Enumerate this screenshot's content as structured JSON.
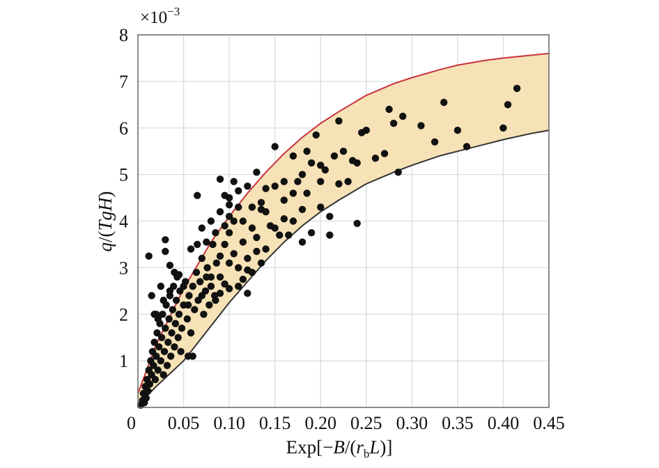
{
  "chart_data": {
    "type": "scatter",
    "title": "",
    "xlabel": {
      "prefix": "Exp[−",
      "b": "B",
      "mid": "/(",
      "r": "r",
      "sub": "b",
      "l": "L",
      "suffix": ")]"
    },
    "ylabel": {
      "q": "q",
      "mid": "/(",
      "tgh": "TgH",
      "suffix": ")"
    },
    "multiplier": {
      "base": "×10",
      "exp": "−3"
    },
    "xlim": [
      0,
      0.45
    ],
    "ylim": [
      0,
      8
    ],
    "x_ticks": [
      "0",
      "0.05",
      "0.10",
      "0.15",
      "0.20",
      "0.25",
      "0.30",
      "0.35",
      "0.40",
      "0.45"
    ],
    "y_ticks": [
      "1",
      "2",
      "3",
      "4",
      "5",
      "6",
      "7",
      "8"
    ],
    "grid": true,
    "band": {
      "fill_color": "#f6e2b6",
      "upper": {
        "color": "#c8323c",
        "x": [
          0,
          0.02,
          0.05,
          0.08,
          0.1,
          0.12,
          0.14,
          0.16,
          0.18,
          0.2,
          0.22,
          0.25,
          0.28,
          0.3,
          0.33,
          0.35,
          0.38,
          0.4,
          0.43,
          0.45
        ],
        "y": [
          0.3,
          1.35,
          2.55,
          3.55,
          4.1,
          4.6,
          5.05,
          5.45,
          5.8,
          6.1,
          6.35,
          6.7,
          6.95,
          7.08,
          7.25,
          7.35,
          7.45,
          7.5,
          7.56,
          7.6
        ]
      },
      "lower": {
        "color": "#333333",
        "x": [
          0,
          0.02,
          0.05,
          0.08,
          0.1,
          0.12,
          0.14,
          0.16,
          0.18,
          0.2,
          0.22,
          0.25,
          0.28,
          0.3,
          0.33,
          0.35,
          0.38,
          0.4,
          0.43,
          0.45
        ],
        "y": [
          0.05,
          0.45,
          1.0,
          1.75,
          2.25,
          2.7,
          3.15,
          3.55,
          3.9,
          4.2,
          4.45,
          4.8,
          5.05,
          5.2,
          5.4,
          5.5,
          5.65,
          5.75,
          5.88,
          5.95
        ]
      }
    },
    "series": [
      {
        "color": "#111111",
        "points": [
          [
            0.003,
            0.05
          ],
          [
            0.005,
            0.15
          ],
          [
            0.006,
            0.3
          ],
          [
            0.007,
            0.1
          ],
          [
            0.008,
            0.45
          ],
          [
            0.009,
            0.2
          ],
          [
            0.01,
            0.6
          ],
          [
            0.011,
            0.35
          ],
          [
            0.012,
            0.8
          ],
          [
            0.013,
            0.5
          ],
          [
            0.014,
            1.0
          ],
          [
            0.015,
            0.7
          ],
          [
            0.016,
            1.2
          ],
          [
            0.017,
            0.9
          ],
          [
            0.018,
            1.4
          ],
          [
            0.019,
            0.6
          ],
          [
            0.02,
            1.1
          ],
          [
            0.021,
            1.6
          ],
          [
            0.022,
            0.8
          ],
          [
            0.023,
            1.3
          ],
          [
            0.024,
            1.8
          ],
          [
            0.025,
            1.0
          ],
          [
            0.026,
            1.5
          ],
          [
            0.027,
            2.0
          ],
          [
            0.028,
            0.7
          ],
          [
            0.029,
            1.2
          ],
          [
            0.03,
            1.7
          ],
          [
            0.031,
            2.2
          ],
          [
            0.032,
            0.9
          ],
          [
            0.033,
            1.4
          ],
          [
            0.034,
            1.9
          ],
          [
            0.035,
            2.4
          ],
          [
            0.036,
            1.1
          ],
          [
            0.037,
            1.6
          ],
          [
            0.038,
            2.1
          ],
          [
            0.039,
            2.6
          ],
          [
            0.04,
            1.3
          ],
          [
            0.041,
            1.8
          ],
          [
            0.042,
            2.3
          ],
          [
            0.043,
            2.8
          ],
          [
            0.044,
            1.5
          ],
          [
            0.045,
            2.0
          ],
          [
            0.046,
            2.5
          ],
          [
            0.047,
            1.2
          ],
          [
            0.048,
            1.7
          ],
          [
            0.05,
            2.2
          ],
          [
            0.052,
            2.7
          ],
          [
            0.054,
            1.9
          ],
          [
            0.056,
            2.4
          ],
          [
            0.058,
            1.6
          ],
          [
            0.06,
            2.6
          ],
          [
            0.062,
            2.1
          ],
          [
            0.064,
            2.9
          ],
          [
            0.066,
            2.3
          ],
          [
            0.068,
            2.7
          ],
          [
            0.07,
            3.2
          ],
          [
            0.072,
            2.0
          ],
          [
            0.074,
            2.5
          ],
          [
            0.076,
            3.0
          ],
          [
            0.078,
            2.2
          ],
          [
            0.08,
            2.8
          ],
          [
            0.082,
            3.5
          ],
          [
            0.084,
            2.4
          ],
          [
            0.086,
            3.1
          ],
          [
            0.015,
            2.4
          ],
          [
            0.012,
            3.25
          ],
          [
            0.02,
            2.0
          ],
          [
            0.025,
            2.6
          ],
          [
            0.03,
            3.35
          ],
          [
            0.035,
            3.05
          ],
          [
            0.04,
            2.9
          ],
          [
            0.045,
            2.85
          ],
          [
            0.03,
            3.6
          ],
          [
            0.035,
            2.5
          ],
          [
            0.018,
            2.0
          ],
          [
            0.022,
            1.9
          ],
          [
            0.028,
            2.3
          ],
          [
            0.05,
            2.6
          ],
          [
            0.055,
            2.2
          ],
          [
            0.06,
            1.1
          ],
          [
            0.055,
            1.1
          ],
          [
            0.058,
            3.4
          ],
          [
            0.065,
            3.5
          ],
          [
            0.07,
            3.85
          ],
          [
            0.065,
            4.55
          ],
          [
            0.075,
            3.55
          ],
          [
            0.08,
            4.0
          ],
          [
            0.085,
            3.75
          ],
          [
            0.09,
            4.2
          ],
          [
            0.09,
            4.9
          ],
          [
            0.095,
            3.9
          ],
          [
            0.1,
            4.1
          ],
          [
            0.1,
            4.5
          ],
          [
            0.105,
            4.0
          ],
          [
            0.11,
            4.3
          ],
          [
            0.11,
            4.65
          ],
          [
            0.115,
            4.0
          ],
          [
            0.12,
            4.75
          ],
          [
            0.125,
            4.3
          ],
          [
            0.13,
            5.05
          ],
          [
            0.135,
            4.25
          ],
          [
            0.14,
            4.2
          ],
          [
            0.09,
            3.25
          ],
          [
            0.095,
            3.5
          ],
          [
            0.1,
            3.75
          ],
          [
            0.1,
            3.1
          ],
          [
            0.105,
            3.3
          ],
          [
            0.11,
            3.0
          ],
          [
            0.115,
            2.75
          ],
          [
            0.12,
            3.2
          ],
          [
            0.125,
            2.9
          ],
          [
            0.13,
            3.35
          ],
          [
            0.135,
            3.1
          ],
          [
            0.1,
            2.55
          ],
          [
            0.095,
            2.65
          ],
          [
            0.09,
            2.45
          ],
          [
            0.085,
            2.3
          ],
          [
            0.08,
            2.6
          ],
          [
            0.075,
            2.8
          ],
          [
            0.07,
            2.4
          ],
          [
            0.09,
            2.8
          ],
          [
            0.11,
            2.6
          ],
          [
            0.12,
            2.45
          ],
          [
            0.12,
            2.95
          ],
          [
            0.115,
            3.55
          ],
          [
            0.13,
            3.65
          ],
          [
            0.14,
            3.4
          ],
          [
            0.15,
            5.6
          ],
          [
            0.15,
            4.75
          ],
          [
            0.15,
            3.85
          ],
          [
            0.155,
            3.7
          ],
          [
            0.16,
            4.45
          ],
          [
            0.165,
            3.7
          ],
          [
            0.17,
            5.4
          ],
          [
            0.17,
            4.6
          ],
          [
            0.175,
            4.85
          ],
          [
            0.18,
            5.0
          ],
          [
            0.18,
            4.25
          ],
          [
            0.18,
            3.55
          ],
          [
            0.185,
            5.5
          ],
          [
            0.185,
            4.6
          ],
          [
            0.19,
            5.25
          ],
          [
            0.19,
            3.75
          ],
          [
            0.195,
            5.85
          ],
          [
            0.2,
            4.85
          ],
          [
            0.2,
            4.3
          ],
          [
            0.205,
            5.1
          ],
          [
            0.21,
            4.1
          ],
          [
            0.21,
            3.7
          ],
          [
            0.215,
            5.4
          ],
          [
            0.22,
            6.15
          ],
          [
            0.22,
            4.8
          ],
          [
            0.225,
            5.5
          ],
          [
            0.23,
            4.85
          ],
          [
            0.235,
            5.3
          ],
          [
            0.24,
            5.25
          ],
          [
            0.245,
            5.9
          ],
          [
            0.24,
            3.95
          ],
          [
            0.25,
            5.95
          ],
          [
            0.26,
            5.35
          ],
          [
            0.27,
            5.45
          ],
          [
            0.275,
            6.4
          ],
          [
            0.28,
            6.1
          ],
          [
            0.285,
            5.05
          ],
          [
            0.29,
            6.25
          ],
          [
            0.31,
            6.05
          ],
          [
            0.325,
            5.7
          ],
          [
            0.335,
            6.55
          ],
          [
            0.35,
            5.95
          ],
          [
            0.36,
            5.6
          ],
          [
            0.4,
            6.0
          ],
          [
            0.405,
            6.5
          ],
          [
            0.415,
            6.85
          ],
          [
            0.2,
            5.2
          ],
          [
            0.16,
            4.85
          ],
          [
            0.14,
            4.7
          ],
          [
            0.135,
            4.4
          ],
          [
            0.17,
            4.0
          ],
          [
            0.16,
            4.05
          ],
          [
            0.125,
            3.85
          ],
          [
            0.145,
            3.9
          ],
          [
            0.1,
            4.35
          ],
          [
            0.105,
            4.85
          ],
          [
            0.095,
            4.55
          ]
        ]
      }
    ]
  }
}
